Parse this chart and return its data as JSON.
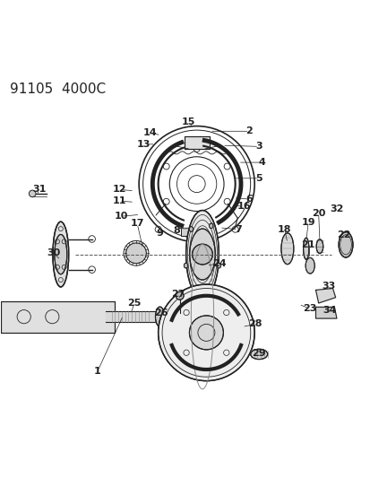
{
  "title": "91105  4000C",
  "bg_color": "#ffffff",
  "line_color": "#222222",
  "title_fontsize": 11,
  "label_fontsize": 8,
  "fig_width": 4.14,
  "fig_height": 5.33,
  "dpi": 100
}
